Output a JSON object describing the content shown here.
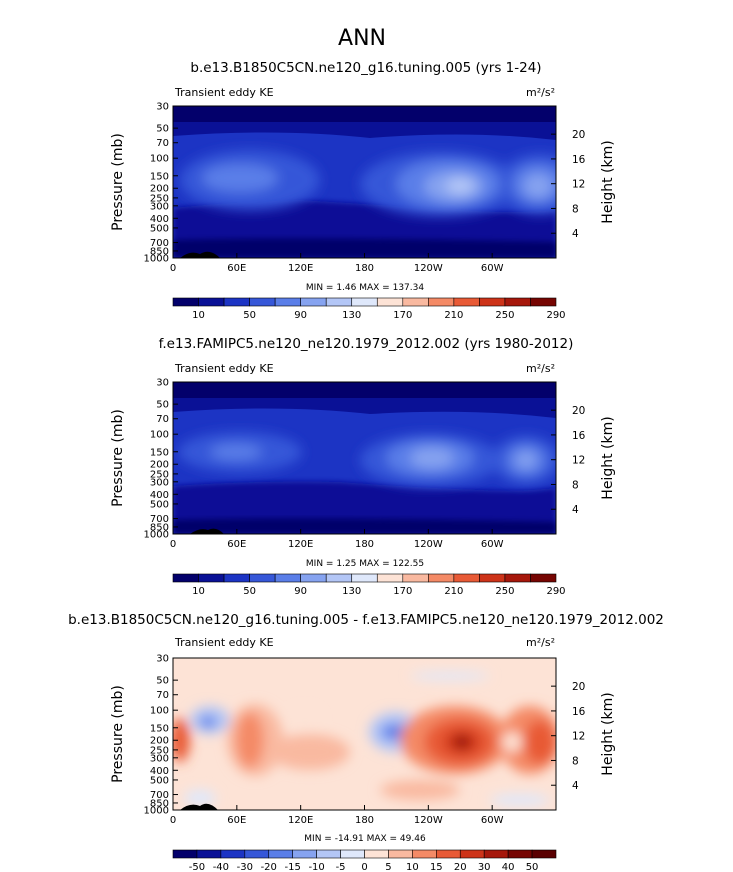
{
  "figure": {
    "title": "ANN"
  },
  "chart_data": [
    {
      "type": "heatmap",
      "title": "b.e13.B1850C5CN.ne120_g16.tuning.005 (yrs 1-24)",
      "left_label": "Transient eddy KE",
      "units_label": "m²/s²",
      "ylabel": "Pressure (mb)",
      "y2label": "Height (km)",
      "x_ticks": [
        "0",
        "60E",
        "120E",
        "180",
        "120W",
        "60W"
      ],
      "y_ticks": [
        "30",
        "50",
        "70",
        "100",
        "150",
        "200",
        "250",
        "300",
        "400",
        "500",
        "700",
        "850",
        "1000"
      ],
      "y2_ticks": [
        "4",
        "8",
        "12",
        "16",
        "20"
      ],
      "stats": "MIN =    1.46   MAX = 137.34",
      "colorbar_labels": [
        "10",
        "50",
        "90",
        "130",
        "170",
        "210",
        "250",
        "290"
      ],
      "ylim": [
        1000,
        30
      ],
      "xlim": [
        0,
        360
      ]
    },
    {
      "type": "heatmap",
      "title": "f.e13.FAMIPC5.ne120_ne120.1979_2012.002 (yrs 1980-2012)",
      "left_label": "Transient eddy KE",
      "units_label": "m²/s²",
      "ylabel": "Pressure (mb)",
      "y2label": "Height (km)",
      "x_ticks": [
        "0",
        "60E",
        "120E",
        "180",
        "120W",
        "60W"
      ],
      "y_ticks": [
        "30",
        "50",
        "70",
        "100",
        "150",
        "200",
        "250",
        "300",
        "400",
        "500",
        "700",
        "850",
        "1000"
      ],
      "y2_ticks": [
        "4",
        "8",
        "12",
        "16",
        "20"
      ],
      "stats": "MIN =    1.25   MAX = 122.55",
      "colorbar_labels": [
        "10",
        "50",
        "90",
        "130",
        "170",
        "210",
        "250",
        "290"
      ],
      "ylim": [
        1000,
        30
      ],
      "xlim": [
        0,
        360
      ]
    },
    {
      "type": "heatmap",
      "title": "b.e13.B1850C5CN.ne120_g16.tuning.005 - f.e13.FAMIPC5.ne120_ne120.1979_2012.002",
      "left_label": "Transient eddy KE",
      "units_label": "m²/s²",
      "ylabel": "Pressure (mb)",
      "y2label": "Height (km)",
      "x_ticks": [
        "0",
        "60E",
        "120E",
        "180",
        "120W",
        "60W"
      ],
      "y_ticks": [
        "30",
        "50",
        "70",
        "100",
        "150",
        "200",
        "250",
        "300",
        "400",
        "500",
        "700",
        "850",
        "1000"
      ],
      "y2_ticks": [
        "4",
        "8",
        "12",
        "16",
        "20"
      ],
      "stats": "MIN =  -14.91   MAX =  49.46",
      "colorbar_labels": [
        "-50",
        "-40",
        "-30",
        "-20",
        "-15",
        "-10",
        "-5",
        "0",
        "5",
        "10",
        "15",
        "20",
        "30",
        "40",
        "50"
      ],
      "ylim": [
        1000,
        30
      ],
      "xlim": [
        0,
        360
      ]
    }
  ],
  "colors": {
    "abs_scale": [
      "#03006b",
      "#0a1196",
      "#1c34c4",
      "#3657d8",
      "#5a7ee8",
      "#86a3f0",
      "#b3c6f6",
      "#dfe8fb",
      "#fde3d6",
      "#f9b9a0",
      "#f48a66",
      "#e85a36",
      "#cd3319",
      "#a6170b",
      "#760502"
    ],
    "diff_scale": [
      "#03006b",
      "#0a1196",
      "#1c34c4",
      "#3657d8",
      "#5a7ee8",
      "#86a3f0",
      "#b3c6f6",
      "#dfe8fb",
      "#fde3d6",
      "#f9b9a0",
      "#f48a66",
      "#e85a36",
      "#cd3319",
      "#a6170b",
      "#760502",
      "#5a0001"
    ]
  }
}
